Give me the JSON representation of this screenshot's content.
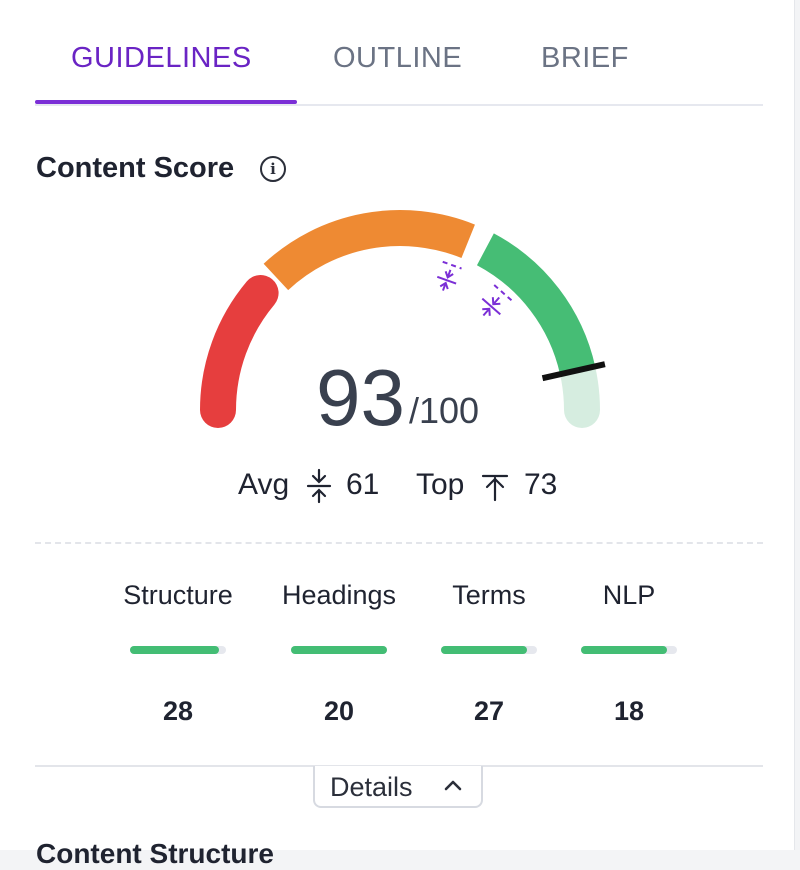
{
  "tabs": [
    {
      "label": "GUIDELINES",
      "active": true
    },
    {
      "label": "OUTLINE",
      "active": false
    },
    {
      "label": "BRIEF",
      "active": false
    }
  ],
  "content_score": {
    "heading": "Content Score",
    "info_icon": "info-icon",
    "score": "93",
    "max": "/100",
    "score_value": 93,
    "avg_label": "Avg",
    "avg_value": "61",
    "top_label": "Top",
    "top_value": "73"
  },
  "gauge_colors": {
    "red": "#e63e3e",
    "orange": "#ee8a33",
    "green": "#46bd75",
    "green_light": "#d6ede0",
    "marker": "#7b2fd6"
  },
  "metrics": [
    {
      "label": "Structure",
      "value": "28",
      "fill": 0.93
    },
    {
      "label": "Headings",
      "value": "20",
      "fill": 1.0
    },
    {
      "label": "Terms",
      "value": "27",
      "fill": 0.9
    },
    {
      "label": "NLP",
      "value": "18",
      "fill": 0.9
    }
  ],
  "details_button": {
    "label": "Details",
    "icon": "chevron-up-icon"
  },
  "next_section": {
    "heading": "Content Structure"
  }
}
